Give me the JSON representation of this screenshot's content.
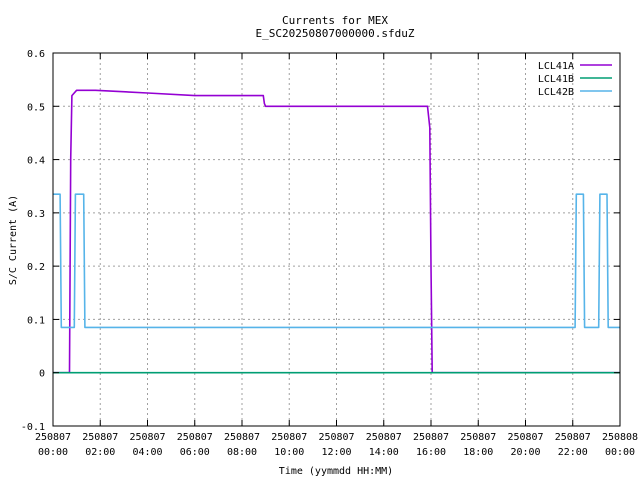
{
  "chart_data": {
    "type": "line",
    "title": "Currents for MEX",
    "subtitle": "E_SC20250807000000.sfduZ",
    "xlabel": "Time (yymmdd HH:MM)",
    "ylabel": "S/C Current (A)",
    "xlim": [
      0,
      24
    ],
    "ylim": [
      -0.1,
      0.6
    ],
    "grid": true,
    "legend_position": "top-right",
    "x_ticks": [
      {
        "date": "250807",
        "time": "00:00",
        "value": 0
      },
      {
        "date": "250807",
        "time": "02:00",
        "value": 2
      },
      {
        "date": "250807",
        "time": "04:00",
        "value": 4
      },
      {
        "date": "250807",
        "time": "06:00",
        "value": 6
      },
      {
        "date": "250807",
        "time": "08:00",
        "value": 8
      },
      {
        "date": "250807",
        "time": "10:00",
        "value": 10
      },
      {
        "date": "250807",
        "time": "12:00",
        "value": 12
      },
      {
        "date": "250807",
        "time": "14:00",
        "value": 14
      },
      {
        "date": "250807",
        "time": "16:00",
        "value": 16
      },
      {
        "date": "250807",
        "time": "18:00",
        "value": 18
      },
      {
        "date": "250807",
        "time": "20:00",
        "value": 20
      },
      {
        "date": "250807",
        "time": "22:00",
        "value": 22
      },
      {
        "date": "250808",
        "time": "00:00",
        "value": 24
      }
    ],
    "y_ticks": [
      {
        "label": "-0.1",
        "value": -0.1
      },
      {
        "label": "0",
        "value": 0
      },
      {
        "label": "0.1",
        "value": 0.1
      },
      {
        "label": "0.2",
        "value": 0.2
      },
      {
        "label": "0.3",
        "value": 0.3
      },
      {
        "label": "0.4",
        "value": 0.4
      },
      {
        "label": "0.5",
        "value": 0.5
      },
      {
        "label": "0.6",
        "value": 0.6
      }
    ],
    "series": [
      {
        "name": "LCL41A",
        "color": "#9400d3",
        "x": [
          0,
          0.3,
          0.7,
          0.75,
          0.8,
          1.0,
          1.8,
          4.0,
          6.0,
          8.0,
          8.9,
          8.95,
          9.0,
          11.0,
          13.0,
          15.0,
          15.85,
          15.95,
          16.0,
          16.05,
          17.0,
          20.0,
          23.0,
          24.0
        ],
        "y": [
          0,
          0,
          0,
          0.4,
          0.52,
          0.53,
          0.53,
          0.525,
          0.52,
          0.52,
          0.52,
          0.505,
          0.5,
          0.5,
          0.5,
          0.5,
          0.5,
          0.46,
          0.2,
          0,
          0,
          0,
          0,
          0
        ]
      },
      {
        "name": "LCL41B",
        "color": "#009e73",
        "x": [
          0,
          2,
          4,
          6,
          8,
          10,
          12,
          14,
          16,
          18,
          20,
          22,
          24
        ],
        "y": [
          0,
          0,
          0,
          0,
          0,
          0,
          0,
          0,
          0,
          0,
          0,
          0,
          0
        ]
      },
      {
        "name": "LCL42B",
        "color": "#56b4e9",
        "x": [
          0,
          0.3,
          0.35,
          0.9,
          0.95,
          1.3,
          1.35,
          4.0,
          8.0,
          12.0,
          16.0,
          20.0,
          22.1,
          22.15,
          22.45,
          22.5,
          23.1,
          23.15,
          23.45,
          23.5,
          24.0
        ],
        "y": [
          0.335,
          0.335,
          0.085,
          0.085,
          0.335,
          0.335,
          0.085,
          0.085,
          0.085,
          0.085,
          0.085,
          0.085,
          0.085,
          0.335,
          0.335,
          0.085,
          0.085,
          0.335,
          0.335,
          0.085,
          0.085
        ]
      }
    ]
  }
}
